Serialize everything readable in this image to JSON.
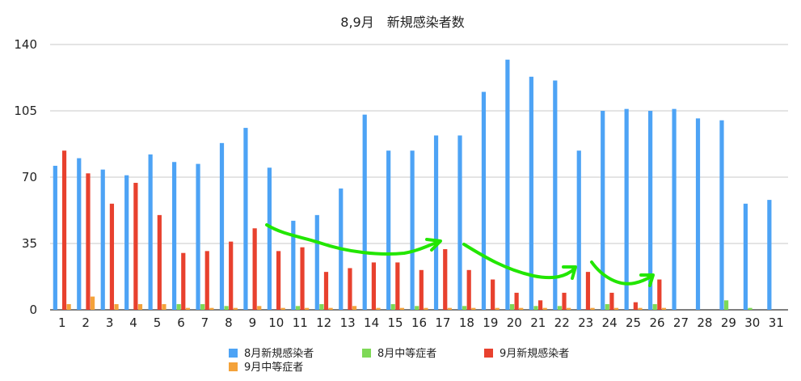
{
  "chart_data": {
    "type": "bar",
    "title": "8,9月　新規感染者数",
    "categories": [
      "1",
      "2",
      "3",
      "4",
      "5",
      "6",
      "7",
      "8",
      "9",
      "10",
      "11",
      "12",
      "13",
      "14",
      "15",
      "16",
      "17",
      "18",
      "19",
      "20",
      "21",
      "22",
      "23",
      "24",
      "25",
      "26",
      "27",
      "28",
      "29",
      "30",
      "31"
    ],
    "ylim": [
      0,
      140
    ],
    "yticks": [
      "0",
      "35",
      "70",
      "105",
      "140"
    ],
    "grid": true,
    "legend_position": "bottom",
    "series": [
      {
        "name": "8月新規感染者",
        "color": "#4da3f5",
        "values": [
          76,
          80,
          74,
          71,
          82,
          78,
          77,
          88,
          96,
          75,
          47,
          50,
          64,
          103,
          84,
          84,
          92,
          92,
          115,
          132,
          123,
          121,
          84,
          105,
          106,
          105,
          106,
          101,
          100,
          56,
          58
        ]
      },
      {
        "name": "8月中等症者",
        "color": "#7ed957",
        "values": [
          0,
          0,
          0,
          0,
          0,
          3,
          3,
          2,
          0,
          0,
          2,
          3,
          0,
          0,
          3,
          2,
          0,
          2,
          0,
          3,
          2,
          2,
          0,
          3,
          0,
          3,
          0,
          0,
          5,
          1,
          0
        ]
      },
      {
        "name": "9月新規感染者",
        "color": "#e8412e",
        "values": [
          84,
          72,
          56,
          67,
          50,
          30,
          31,
          36,
          43,
          31,
          33,
          20,
          22,
          25,
          25,
          21,
          32,
          21,
          16,
          9,
          5,
          9,
          20,
          9,
          4,
          16,
          null,
          null,
          null,
          null,
          null
        ]
      },
      {
        "name": "9月中等症者",
        "color": "#f4a23a",
        "values": [
          3,
          7,
          3,
          3,
          3,
          1,
          1,
          1,
          2,
          1,
          1,
          1,
          2,
          1,
          1,
          1,
          1,
          1,
          1,
          1,
          1,
          1,
          1,
          1,
          1,
          1,
          null,
          null,
          null,
          null,
          null
        ]
      }
    ],
    "annotations": [
      "green-arrow-1",
      "green-arrow-2",
      "green-arrow-3"
    ]
  }
}
